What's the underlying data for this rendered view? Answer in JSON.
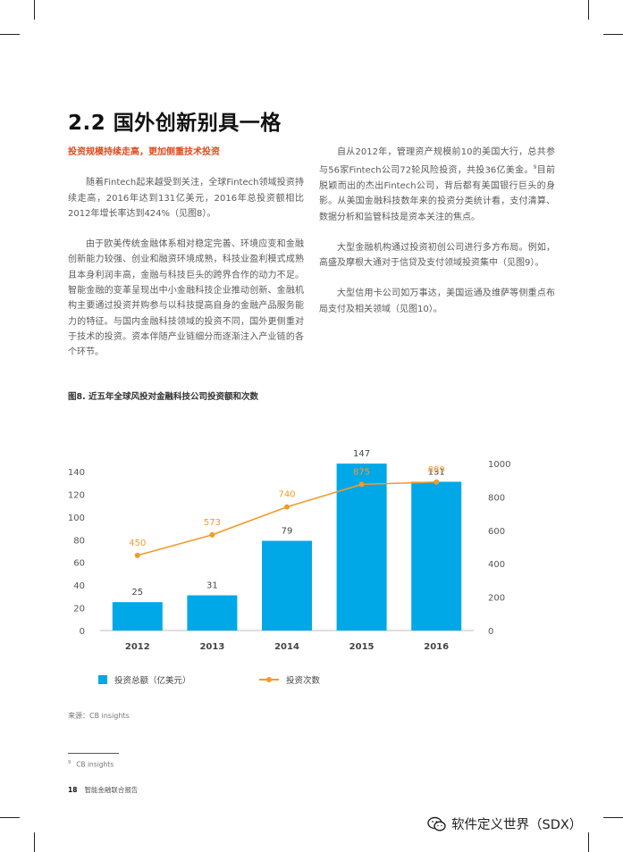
{
  "title": "2.2 国外创新别具一格",
  "left_column": {
    "subheading": "投资规模持续走高，更加侧重技术投资",
    "paragraphs": [
      "随着Fintech起来越受到关注，全球Fintech领域投资持续走高，2016年达到131亿美元，2016年总投资额相比2012年增长率达到424%（见图8）。",
      "由于欧美传统金融体系相对稳定完善、环境应变和金融创新能力较强、创业和融资环境成熟，科技业盈利模式成熟且本身利润丰高，金融与科技巨头的跨界合作的动力不足。智能金融的变革呈现出中小金融科技企业推动创新、金融机构主要通过投资并购参与以科技提高自身的金融产品服务能力的特征。与国内金融科技领域的投资不同，国外更侧重对于技术的投资。资本伴随产业链细分而逐渐注入产业链的各个环节。"
    ]
  },
  "right_column": {
    "p1_before": "自从2012年，管理资产规模前10的美国大行，总共参与56家Fintech公司72轮风险投资，共投36亿美金。",
    "p1_fn": "9",
    "p1_after": "目前脱颖而出的杰出Fintech公司，背后都有美国银行巨头的身影。从美国金融科技数年来的投资分类统计看，支付清算、数据分析和监管科技是资本关注的焦点。",
    "p2": "大型金融机构通过投资初创公司进行多方布局。例如，高盛及摩根大通对于信贷及支付领域投资集中（见图9）。",
    "p3": "大型信用卡公司如万事达，美国运通及维萨等侧重点布局支付及相关领域（见图10）。"
  },
  "figure_caption": "图8. 近五年全球风投对金融科技公司投资额和次数",
  "chart_data": {
    "type": "bar",
    "categories": [
      "2012",
      "2013",
      "2014",
      "2015",
      "2016"
    ],
    "series": [
      {
        "name": "投资总额（亿美元）",
        "type": "bar",
        "axis": "left",
        "values": [
          25,
          31,
          79,
          147,
          131
        ],
        "color": "#00a8e8"
      },
      {
        "name": "投资次数",
        "type": "line",
        "axis": "right",
        "values": [
          450,
          573,
          740,
          875,
          889
        ],
        "color": "#f39a2a"
      }
    ],
    "y_left": {
      "ylim": [
        0,
        140
      ],
      "ticks": [
        0,
        20,
        40,
        60,
        80,
        100,
        120,
        140
      ]
    },
    "y_right": {
      "ylim": [
        0,
        1000
      ],
      "ticks": [
        0,
        200,
        400,
        600,
        800,
        1000
      ]
    },
    "grid": false,
    "legend": "bottom"
  },
  "source": "来源：CB insights",
  "footnote": {
    "num": "9",
    "text": "CB insights"
  },
  "folio": {
    "page": "18",
    "label": "智能金融联合报告"
  },
  "watermark": "软件定义世界（SDX）"
}
